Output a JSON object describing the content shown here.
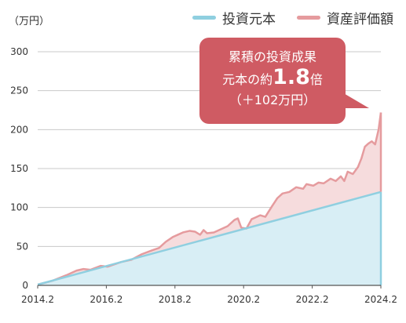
{
  "unit_label": "（万円）",
  "legend": [
    {
      "label": "投資元本",
      "color": "#8fcfe0"
    },
    {
      "label": "資産評価額",
      "color": "#e59b9e"
    }
  ],
  "callout": {
    "line1": "累積の投資成果",
    "line2_prefix": "元本の約",
    "line2_value": "1.8",
    "line2_suffix": "倍",
    "line3": "（＋102万円）",
    "color": "#cf5b63"
  },
  "chart_data": {
    "type": "area",
    "xlabel": "",
    "ylabel": "",
    "x_tick_labels": [
      "2014.2",
      "2016.2",
      "2018.2",
      "2020.2",
      "2022.2",
      "2024.2"
    ],
    "y_tick_labels": [
      "0",
      "50",
      "100",
      "150",
      "200",
      "250",
      "300"
    ],
    "ylim": [
      0,
      300
    ],
    "xlim": [
      2014.1667,
      2024.1667
    ],
    "grid": true,
    "legend_position": "top-right",
    "series": [
      {
        "name": "投資元本",
        "color": "#8fcfe0",
        "fill": "#d8eef5",
        "x": [
          2014.1667,
          2024.1667
        ],
        "values": [
          1,
          120
        ]
      },
      {
        "name": "資産評価額",
        "color": "#e59b9e",
        "fill": "#f6dcdd",
        "x": [
          2014.17,
          2014.6,
          2015.0,
          2015.3,
          2015.5,
          2015.7,
          2016.0,
          2016.2,
          2016.4,
          2016.6,
          2016.9,
          2017.2,
          2017.5,
          2017.7,
          2017.9,
          2018.1,
          2018.25,
          2018.4,
          2018.6,
          2018.75,
          2018.9,
          2019.0,
          2019.1,
          2019.3,
          2019.5,
          2019.7,
          2019.9,
          2020.0,
          2020.1,
          2020.25,
          2020.4,
          2020.5,
          2020.65,
          2020.8,
          2021.0,
          2021.15,
          2021.3,
          2021.5,
          2021.7,
          2021.9,
          2022.0,
          2022.2,
          2022.35,
          2022.5,
          2022.7,
          2022.85,
          2023.0,
          2023.1,
          2023.2,
          2023.35,
          2023.5,
          2023.6,
          2023.7,
          2023.8,
          2023.9,
          2024.0,
          2024.1,
          2024.1667
        ],
        "values": [
          1,
          6,
          13,
          19,
          21,
          20,
          25,
          24,
          27,
          30,
          33,
          40,
          45,
          48,
          56,
          62,
          65,
          68,
          70,
          69,
          65,
          71,
          67,
          68,
          72,
          76,
          84,
          86,
          74,
          73,
          85,
          87,
          90,
          88,
          102,
          112,
          118,
          120,
          126,
          124,
          130,
          128,
          132,
          131,
          137,
          134,
          140,
          134,
          146,
          143,
          152,
          163,
          178,
          182,
          185,
          181,
          200,
          222
        ]
      }
    ]
  }
}
